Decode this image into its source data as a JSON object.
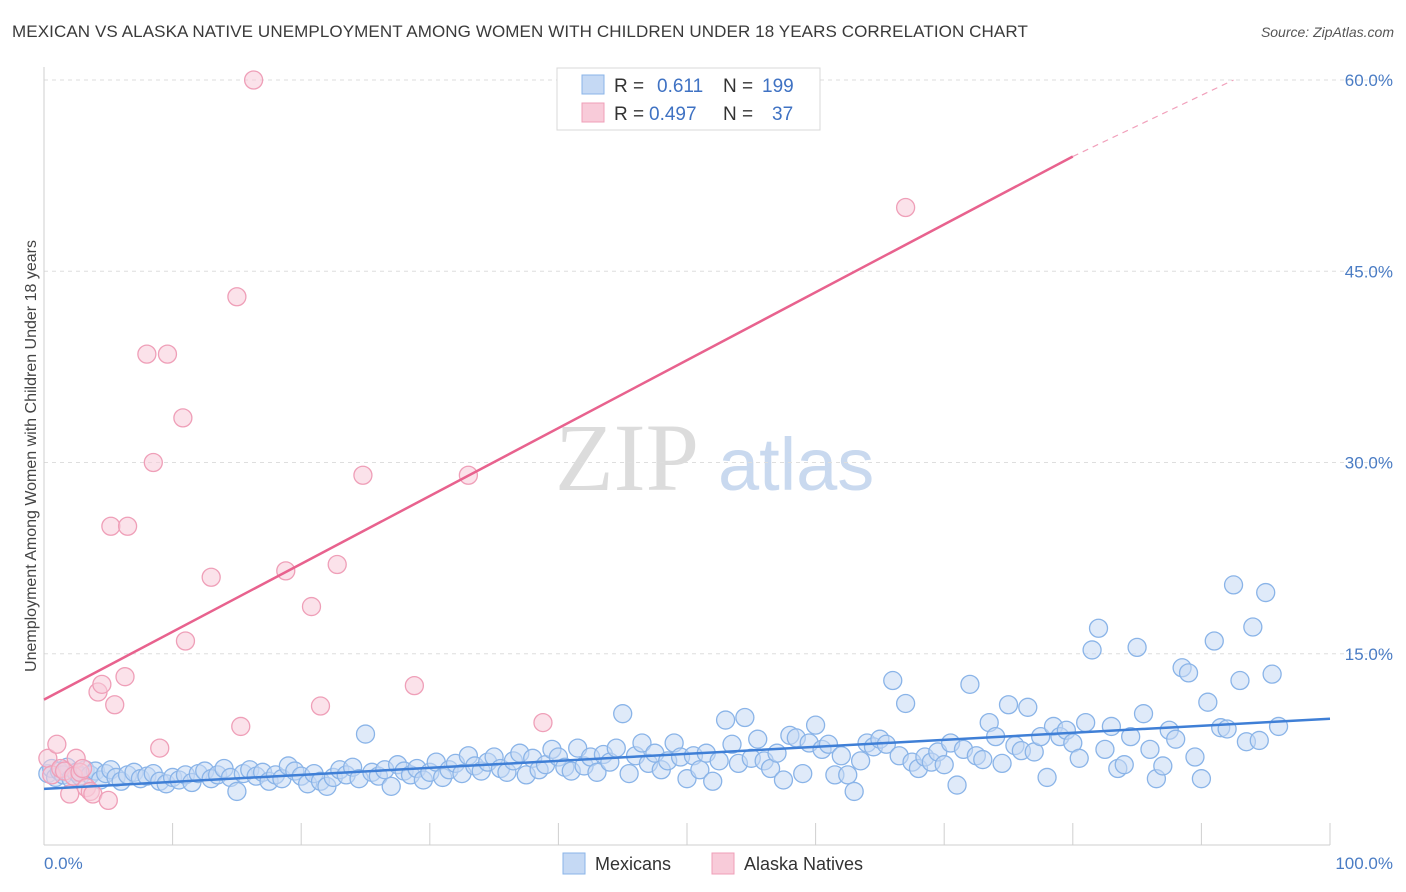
{
  "title": "MEXICAN VS ALASKA NATIVE UNEMPLOYMENT AMONG WOMEN WITH CHILDREN UNDER 18 YEARS CORRELATION CHART",
  "source": "Source: ZipAtlas.com",
  "watermark": {
    "zip": "ZIP",
    "atlas": "atlas"
  },
  "legend": {
    "r_label": "R =",
    "n_label": "N =",
    "rows": [
      {
        "series": "Mexicans",
        "r": "0.611",
        "n": "199",
        "color": "#8ab4e8",
        "fill": "#c5d9f4"
      },
      {
        "series": "Alaska Natives",
        "r": "0.497",
        "n": "37",
        "color": "#ef9fb8",
        "fill": "#f8cbd9"
      }
    ]
  },
  "chart_data": {
    "type": "scatter",
    "title": "MEXICAN VS ALASKA NATIVE UNEMPLOYMENT AMONG WOMEN WITH CHILDREN UNDER 18 YEARS CORRELATION CHART",
    "xlabel": "",
    "ylabel": "Unemployment Among Women with Children Under 18 years",
    "xlim": [
      0,
      100
    ],
    "ylim": [
      0,
      60
    ],
    "x_tick_labels": [
      "0.0%",
      "100.0%"
    ],
    "y_ticks": [
      15,
      30,
      45,
      60
    ],
    "y_tick_labels": [
      "15.0%",
      "30.0%",
      "45.0%",
      "60.0%"
    ],
    "series": [
      {
        "name": "Mexicans",
        "color": "#3f7fd6",
        "point_color": "#8ab4e8",
        "trend": {
          "x": [
            0,
            100
          ],
          "y": [
            4.4,
            9.9
          ],
          "dashed_from": null
        },
        "points": [
          [
            0.3,
            5.6
          ],
          [
            0.6,
            6.0
          ],
          [
            0.9,
            5.3
          ],
          [
            1.2,
            5.8
          ],
          [
            1.5,
            5.5
          ],
          [
            1.8,
            6.1
          ],
          [
            2.1,
            5.2
          ],
          [
            2.5,
            5.7
          ],
          [
            2.8,
            5.4
          ],
          [
            3.2,
            5.9
          ],
          [
            3.6,
            5.5
          ],
          [
            4.0,
            5.8
          ],
          [
            4.4,
            5.1
          ],
          [
            4.8,
            5.6
          ],
          [
            5.2,
            5.9
          ],
          [
            5.6,
            5.3
          ],
          [
            6.0,
            5.0
          ],
          [
            6.5,
            5.5
          ],
          [
            7.0,
            5.7
          ],
          [
            7.5,
            5.2
          ],
          [
            8.0,
            5.4
          ],
          [
            8.5,
            5.6
          ],
          [
            9.0,
            5.0
          ],
          [
            9.5,
            4.8
          ],
          [
            10.0,
            5.3
          ],
          [
            10.5,
            5.1
          ],
          [
            11.0,
            5.5
          ],
          [
            11.5,
            4.9
          ],
          [
            12.0,
            5.6
          ],
          [
            12.5,
            5.8
          ],
          [
            13.0,
            5.2
          ],
          [
            13.5,
            5.5
          ],
          [
            14.0,
            6.0
          ],
          [
            14.5,
            5.3
          ],
          [
            15.0,
            4.2
          ],
          [
            15.5,
            5.6
          ],
          [
            16.0,
            5.9
          ],
          [
            16.5,
            5.4
          ],
          [
            17.0,
            5.7
          ],
          [
            17.5,
            5.0
          ],
          [
            18.0,
            5.5
          ],
          [
            18.5,
            5.2
          ],
          [
            19.0,
            6.2
          ],
          [
            19.5,
            5.8
          ],
          [
            20.0,
            5.4
          ],
          [
            20.5,
            4.8
          ],
          [
            21.0,
            5.6
          ],
          [
            21.5,
            5.0
          ],
          [
            22.0,
            4.6
          ],
          [
            22.5,
            5.3
          ],
          [
            23.0,
            5.9
          ],
          [
            23.5,
            5.5
          ],
          [
            24.0,
            6.1
          ],
          [
            24.5,
            5.2
          ],
          [
            25.0,
            8.7
          ],
          [
            25.5,
            5.7
          ],
          [
            26.0,
            5.4
          ],
          [
            26.5,
            5.9
          ],
          [
            27.0,
            4.6
          ],
          [
            27.5,
            6.3
          ],
          [
            28.0,
            5.8
          ],
          [
            28.5,
            5.5
          ],
          [
            29.0,
            6.0
          ],
          [
            29.5,
            5.1
          ],
          [
            30.0,
            5.7
          ],
          [
            30.5,
            6.5
          ],
          [
            31.0,
            5.3
          ],
          [
            31.5,
            5.9
          ],
          [
            32.0,
            6.4
          ],
          [
            32.5,
            5.6
          ],
          [
            33.0,
            7.0
          ],
          [
            33.5,
            6.2
          ],
          [
            34.0,
            5.8
          ],
          [
            34.5,
            6.5
          ],
          [
            35.0,
            6.9
          ],
          [
            35.5,
            6.0
          ],
          [
            36.0,
            5.7
          ],
          [
            36.5,
            6.6
          ],
          [
            37.0,
            7.2
          ],
          [
            37.5,
            5.5
          ],
          [
            38.0,
            6.8
          ],
          [
            38.5,
            5.9
          ],
          [
            39.0,
            6.3
          ],
          [
            39.5,
            7.5
          ],
          [
            40.0,
            6.9
          ],
          [
            40.5,
            6.1
          ],
          [
            41.0,
            5.8
          ],
          [
            41.5,
            7.6
          ],
          [
            42.0,
            6.2
          ],
          [
            42.5,
            6.9
          ],
          [
            43.0,
            5.7
          ],
          [
            43.5,
            7.1
          ],
          [
            44.0,
            6.5
          ],
          [
            44.5,
            7.6
          ],
          [
            45.0,
            10.3
          ],
          [
            45.5,
            5.6
          ],
          [
            46.0,
            7.0
          ],
          [
            46.5,
            8.0
          ],
          [
            47.0,
            6.4
          ],
          [
            47.5,
            7.2
          ],
          [
            48.0,
            5.9
          ],
          [
            48.5,
            6.6
          ],
          [
            49.0,
            8.0
          ],
          [
            49.5,
            6.9
          ],
          [
            50.0,
            5.2
          ],
          [
            50.5,
            7.0
          ],
          [
            51.0,
            5.9
          ],
          [
            51.5,
            7.2
          ],
          [
            52.0,
            5.0
          ],
          [
            52.5,
            6.6
          ],
          [
            53.0,
            9.8
          ],
          [
            53.5,
            7.9
          ],
          [
            54.0,
            6.4
          ],
          [
            54.5,
            10.0
          ],
          [
            55.0,
            6.8
          ],
          [
            55.5,
            8.3
          ],
          [
            56.0,
            6.6
          ],
          [
            56.5,
            6.0
          ],
          [
            57.0,
            7.2
          ],
          [
            57.5,
            5.1
          ],
          [
            58.0,
            8.6
          ],
          [
            58.5,
            8.4
          ],
          [
            59.0,
            5.6
          ],
          [
            59.5,
            8.0
          ],
          [
            60.0,
            9.4
          ],
          [
            60.5,
            7.5
          ],
          [
            61.0,
            7.9
          ],
          [
            61.5,
            5.5
          ],
          [
            62.0,
            7.0
          ],
          [
            62.5,
            5.5
          ],
          [
            63.0,
            4.2
          ],
          [
            63.5,
            6.6
          ],
          [
            64.0,
            8.0
          ],
          [
            64.5,
            7.7
          ],
          [
            65.0,
            8.3
          ],
          [
            65.5,
            7.9
          ],
          [
            66.0,
            12.9
          ],
          [
            66.5,
            7.0
          ],
          [
            67.0,
            11.1
          ],
          [
            67.5,
            6.5
          ],
          [
            68.0,
            6.0
          ],
          [
            68.5,
            6.9
          ],
          [
            69.0,
            6.5
          ],
          [
            69.5,
            7.3
          ],
          [
            70.0,
            6.3
          ],
          [
            70.5,
            8.0
          ],
          [
            71.0,
            4.7
          ],
          [
            71.5,
            7.5
          ],
          [
            72.0,
            12.6
          ],
          [
            72.5,
            7.0
          ],
          [
            73.0,
            6.7
          ],
          [
            73.5,
            9.6
          ],
          [
            74.0,
            8.5
          ],
          [
            74.5,
            6.4
          ],
          [
            75.0,
            11.0
          ],
          [
            75.5,
            7.8
          ],
          [
            76.0,
            7.4
          ],
          [
            76.5,
            10.8
          ],
          [
            77.0,
            7.3
          ],
          [
            77.5,
            8.5
          ],
          [
            78.0,
            5.3
          ],
          [
            78.5,
            9.3
          ],
          [
            79.0,
            8.5
          ],
          [
            79.5,
            9.0
          ],
          [
            80.0,
            8.0
          ],
          [
            80.5,
            6.8
          ],
          [
            81.0,
            9.6
          ],
          [
            81.5,
            15.3
          ],
          [
            82.0,
            17.0
          ],
          [
            82.5,
            7.5
          ],
          [
            83.0,
            9.3
          ],
          [
            83.5,
            6.0
          ],
          [
            84.0,
            6.3
          ],
          [
            84.5,
            8.5
          ],
          [
            85.0,
            15.5
          ],
          [
            85.5,
            10.3
          ],
          [
            86.0,
            7.5
          ],
          [
            86.5,
            5.2
          ],
          [
            87.0,
            6.2
          ],
          [
            87.5,
            9.0
          ],
          [
            88.0,
            8.3
          ],
          [
            88.5,
            13.9
          ],
          [
            89.0,
            13.5
          ],
          [
            89.5,
            6.9
          ],
          [
            90.0,
            5.2
          ],
          [
            90.5,
            11.2
          ],
          [
            91.0,
            16.0
          ],
          [
            91.5,
            9.2
          ],
          [
            92.0,
            9.1
          ],
          [
            92.5,
            20.4
          ],
          [
            93.0,
            12.9
          ],
          [
            93.5,
            8.1
          ],
          [
            94.0,
            17.1
          ],
          [
            94.5,
            8.2
          ],
          [
            95.0,
            19.8
          ],
          [
            95.5,
            13.4
          ],
          [
            96.0,
            9.3
          ]
        ]
      },
      {
        "name": "Alaska Natives",
        "color": "#e8628e",
        "point_color": "#ef9fb8",
        "trend": {
          "x": [
            0,
            80,
            92.5
          ],
          "y": [
            11.4,
            54.0,
            60.0
          ],
          "dashed_from": 80
        },
        "points": [
          [
            0.3,
            6.8
          ],
          [
            0.6,
            5.5
          ],
          [
            1.0,
            7.9
          ],
          [
            1.3,
            6.0
          ],
          [
            1.6,
            5.8
          ],
          [
            2.0,
            4.0
          ],
          [
            2.3,
            5.4
          ],
          [
            2.5,
            6.8
          ],
          [
            2.8,
            5.7
          ],
          [
            3.0,
            6.0
          ],
          [
            3.3,
            4.5
          ],
          [
            3.6,
            4.2
          ],
          [
            3.8,
            4.0
          ],
          [
            4.2,
            12.0
          ],
          [
            4.5,
            12.6
          ],
          [
            5.0,
            3.5
          ],
          [
            5.2,
            25.0
          ],
          [
            5.5,
            11.0
          ],
          [
            6.3,
            13.2
          ],
          [
            6.5,
            25.0
          ],
          [
            8.0,
            38.5
          ],
          [
            8.5,
            30.0
          ],
          [
            9.0,
            7.6
          ],
          [
            9.6,
            38.5
          ],
          [
            10.8,
            33.5
          ],
          [
            11.0,
            16.0
          ],
          [
            13.0,
            21.0
          ],
          [
            15.0,
            43.0
          ],
          [
            15.3,
            9.3
          ],
          [
            16.3,
            60.0
          ],
          [
            18.8,
            21.5
          ],
          [
            20.8,
            18.7
          ],
          [
            21.5,
            10.9
          ],
          [
            22.8,
            22.0
          ],
          [
            24.8,
            29.0
          ],
          [
            28.8,
            12.5
          ],
          [
            33.0,
            29.0
          ],
          [
            38.8,
            9.6
          ],
          [
            67.0,
            50.0
          ]
        ]
      }
    ]
  },
  "bottom_legend": [
    {
      "label": "Mexicans"
    },
    {
      "label": "Alaska Natives"
    }
  ]
}
